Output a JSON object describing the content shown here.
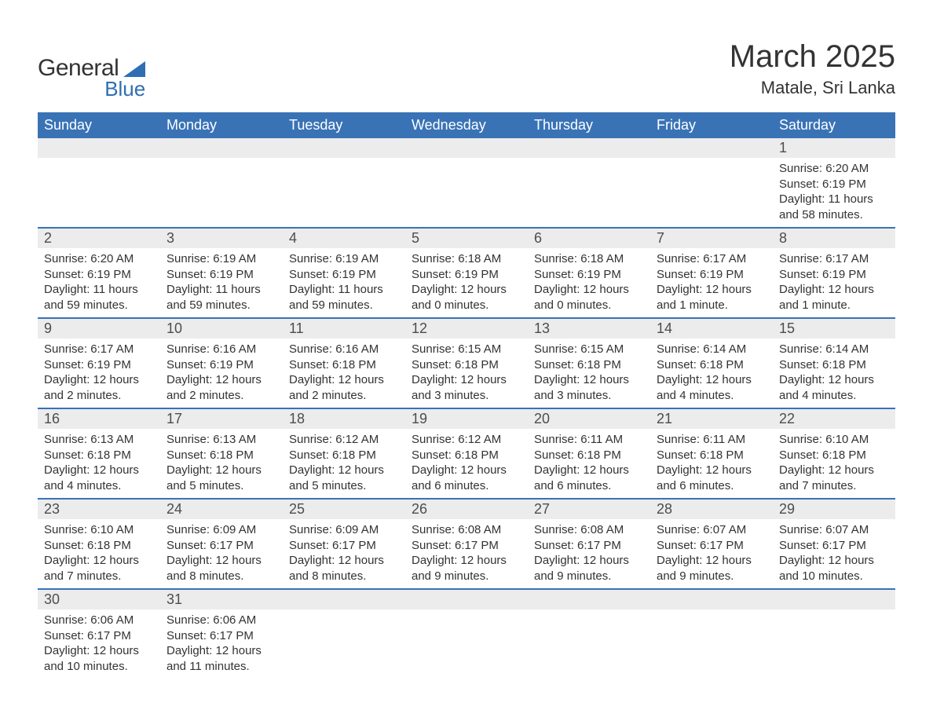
{
  "brand": {
    "word1": "General",
    "word2": "Blue",
    "brand_color": "#2f6eb3"
  },
  "title": "March 2025",
  "location": "Matale, Sri Lanka",
  "header_bg": "#3973b6",
  "header_fg": "#ffffff",
  "daynum_bg": "#ececec",
  "row_border_color": "#3973b6",
  "weekdays": [
    "Sunday",
    "Monday",
    "Tuesday",
    "Wednesday",
    "Thursday",
    "Friday",
    "Saturday"
  ],
  "first_weekday_index": 6,
  "days": [
    {
      "n": 1,
      "sunrise": "6:20 AM",
      "sunset": "6:19 PM",
      "daylight": "11 hours and 58 minutes."
    },
    {
      "n": 2,
      "sunrise": "6:20 AM",
      "sunset": "6:19 PM",
      "daylight": "11 hours and 59 minutes."
    },
    {
      "n": 3,
      "sunrise": "6:19 AM",
      "sunset": "6:19 PM",
      "daylight": "11 hours and 59 minutes."
    },
    {
      "n": 4,
      "sunrise": "6:19 AM",
      "sunset": "6:19 PM",
      "daylight": "11 hours and 59 minutes."
    },
    {
      "n": 5,
      "sunrise": "6:18 AM",
      "sunset": "6:19 PM",
      "daylight": "12 hours and 0 minutes."
    },
    {
      "n": 6,
      "sunrise": "6:18 AM",
      "sunset": "6:19 PM",
      "daylight": "12 hours and 0 minutes."
    },
    {
      "n": 7,
      "sunrise": "6:17 AM",
      "sunset": "6:19 PM",
      "daylight": "12 hours and 1 minute."
    },
    {
      "n": 8,
      "sunrise": "6:17 AM",
      "sunset": "6:19 PM",
      "daylight": "12 hours and 1 minute."
    },
    {
      "n": 9,
      "sunrise": "6:17 AM",
      "sunset": "6:19 PM",
      "daylight": "12 hours and 2 minutes."
    },
    {
      "n": 10,
      "sunrise": "6:16 AM",
      "sunset": "6:19 PM",
      "daylight": "12 hours and 2 minutes."
    },
    {
      "n": 11,
      "sunrise": "6:16 AM",
      "sunset": "6:18 PM",
      "daylight": "12 hours and 2 minutes."
    },
    {
      "n": 12,
      "sunrise": "6:15 AM",
      "sunset": "6:18 PM",
      "daylight": "12 hours and 3 minutes."
    },
    {
      "n": 13,
      "sunrise": "6:15 AM",
      "sunset": "6:18 PM",
      "daylight": "12 hours and 3 minutes."
    },
    {
      "n": 14,
      "sunrise": "6:14 AM",
      "sunset": "6:18 PM",
      "daylight": "12 hours and 4 minutes."
    },
    {
      "n": 15,
      "sunrise": "6:14 AM",
      "sunset": "6:18 PM",
      "daylight": "12 hours and 4 minutes."
    },
    {
      "n": 16,
      "sunrise": "6:13 AM",
      "sunset": "6:18 PM",
      "daylight": "12 hours and 4 minutes."
    },
    {
      "n": 17,
      "sunrise": "6:13 AM",
      "sunset": "6:18 PM",
      "daylight": "12 hours and 5 minutes."
    },
    {
      "n": 18,
      "sunrise": "6:12 AM",
      "sunset": "6:18 PM",
      "daylight": "12 hours and 5 minutes."
    },
    {
      "n": 19,
      "sunrise": "6:12 AM",
      "sunset": "6:18 PM",
      "daylight": "12 hours and 6 minutes."
    },
    {
      "n": 20,
      "sunrise": "6:11 AM",
      "sunset": "6:18 PM",
      "daylight": "12 hours and 6 minutes."
    },
    {
      "n": 21,
      "sunrise": "6:11 AM",
      "sunset": "6:18 PM",
      "daylight": "12 hours and 6 minutes."
    },
    {
      "n": 22,
      "sunrise": "6:10 AM",
      "sunset": "6:18 PM",
      "daylight": "12 hours and 7 minutes."
    },
    {
      "n": 23,
      "sunrise": "6:10 AM",
      "sunset": "6:18 PM",
      "daylight": "12 hours and 7 minutes."
    },
    {
      "n": 24,
      "sunrise": "6:09 AM",
      "sunset": "6:17 PM",
      "daylight": "12 hours and 8 minutes."
    },
    {
      "n": 25,
      "sunrise": "6:09 AM",
      "sunset": "6:17 PM",
      "daylight": "12 hours and 8 minutes."
    },
    {
      "n": 26,
      "sunrise": "6:08 AM",
      "sunset": "6:17 PM",
      "daylight": "12 hours and 9 minutes."
    },
    {
      "n": 27,
      "sunrise": "6:08 AM",
      "sunset": "6:17 PM",
      "daylight": "12 hours and 9 minutes."
    },
    {
      "n": 28,
      "sunrise": "6:07 AM",
      "sunset": "6:17 PM",
      "daylight": "12 hours and 9 minutes."
    },
    {
      "n": 29,
      "sunrise": "6:07 AM",
      "sunset": "6:17 PM",
      "daylight": "12 hours and 10 minutes."
    },
    {
      "n": 30,
      "sunrise": "6:06 AM",
      "sunset": "6:17 PM",
      "daylight": "12 hours and 10 minutes."
    },
    {
      "n": 31,
      "sunrise": "6:06 AM",
      "sunset": "6:17 PM",
      "daylight": "12 hours and 11 minutes."
    }
  ],
  "labels": {
    "sunrise": "Sunrise:",
    "sunset": "Sunset:",
    "daylight": "Daylight:"
  }
}
